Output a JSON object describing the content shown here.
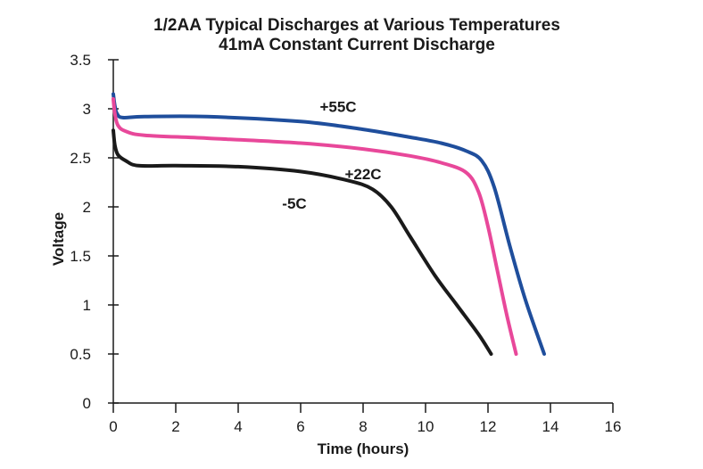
{
  "chart_data": {
    "type": "line",
    "title": "1/2AA Typical Discharges at Various Temperatures",
    "subtitle": "41mA Constant Current Discharge",
    "xlabel": "Time (hours)",
    "ylabel": "Voltage",
    "xlim": [
      0,
      16
    ],
    "ylim": [
      0,
      3.5
    ],
    "xticks": [
      0,
      2,
      4,
      6,
      8,
      10,
      12,
      14,
      16
    ],
    "xtick_labels": [
      "0",
      "2",
      "4",
      "6",
      "8",
      "10",
      "12",
      "14",
      "16"
    ],
    "yticks": [
      0,
      0.5,
      1,
      1.5,
      2,
      2.5,
      3,
      3.5
    ],
    "ytick_labels": [
      "0",
      "0.5",
      "1",
      "1.5",
      "2",
      "2.5",
      "3",
      "3.5"
    ],
    "grid": false,
    "series": [
      {
        "name": "+55C",
        "color": "#1f4e9c",
        "x": [
          0,
          0.05,
          0.12,
          0.3,
          1,
          3,
          6,
          8,
          9.5,
          10.5,
          11.3,
          11.8,
          12.2,
          12.7,
          13.2,
          13.8
        ],
        "y": [
          3.15,
          3.03,
          2.95,
          2.91,
          2.92,
          2.92,
          2.87,
          2.79,
          2.71,
          2.65,
          2.57,
          2.47,
          2.2,
          1.6,
          1.05,
          0.5
        ]
      },
      {
        "name": "+22C",
        "color": "#e8489a",
        "x": [
          0,
          0.05,
          0.15,
          0.4,
          1,
          3,
          6,
          8,
          9.5,
          10.5,
          11.3,
          11.7,
          12.0,
          12.3,
          12.6,
          12.9
        ],
        "y": [
          3.1,
          2.95,
          2.83,
          2.77,
          2.73,
          2.7,
          2.65,
          2.59,
          2.52,
          2.45,
          2.35,
          2.15,
          1.8,
          1.35,
          0.9,
          0.5
        ]
      },
      {
        "name": "-5C",
        "color": "#1a1a1a",
        "x": [
          0,
          0.05,
          0.15,
          0.4,
          0.8,
          2,
          4,
          6,
          7.5,
          8.3,
          8.9,
          9.5,
          10.3,
          11.0,
          11.7,
          12.1
        ],
        "y": [
          2.78,
          2.63,
          2.53,
          2.47,
          2.42,
          2.42,
          2.41,
          2.36,
          2.27,
          2.18,
          2.0,
          1.7,
          1.3,
          1.0,
          0.7,
          0.5
        ]
      }
    ],
    "annotations": [
      {
        "text": "+55C",
        "x": 7.2,
        "y": 2.97
      },
      {
        "text": "+22C",
        "x": 8.0,
        "y": 2.28
      },
      {
        "text": "-5C",
        "x": 5.8,
        "y": 1.98
      }
    ]
  }
}
